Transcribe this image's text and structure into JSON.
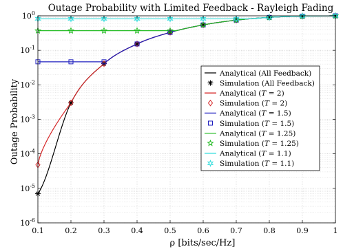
{
  "chart_data": {
    "type": "line",
    "title": "Outage Probability with Limited Feedback - Rayleigh Fading",
    "xlabel": "ρ [bits/sec/Hz]",
    "ylabel": "Outage Probability",
    "xlim": [
      0.1,
      1.0
    ],
    "ylim": [
      1e-06,
      1
    ],
    "yscale": "log",
    "grid": true,
    "minor_grid": true,
    "legend_position": "right",
    "x_ticks": [
      "0.1",
      "0.2",
      "0.3",
      "0.4",
      "0.5",
      "0.6",
      "0.7",
      "0.8",
      "0.9",
      "1"
    ],
    "y_ticks": [
      {
        "base": "10",
        "exp": "-6",
        "value": 1e-06
      },
      {
        "base": "10",
        "exp": "-5",
        "value": 1e-05
      },
      {
        "base": "10",
        "exp": "-4",
        "value": 0.0001
      },
      {
        "base": "10",
        "exp": "-3",
        "value": 0.001
      },
      {
        "base": "10",
        "exp": "-2",
        "value": 0.01
      },
      {
        "base": "10",
        "exp": "-1",
        "value": 0.1
      },
      {
        "base": "10",
        "exp": "0",
        "value": 1
      }
    ],
    "series": [
      {
        "name": "Analytical (All Feedback)",
        "kind": "analytical",
        "color": "#000000",
        "floor": 0,
        "x": [
          0.1,
          0.2,
          0.3,
          0.4,
          0.5,
          0.6,
          0.7,
          0.8,
          0.9,
          1.0
        ]
      },
      {
        "name": "Simulation (All Feedback)",
        "kind": "simulation",
        "color": "#000000",
        "marker": "asterisk",
        "x": [
          0.1,
          0.2,
          0.3,
          0.4,
          0.5,
          0.6,
          0.7,
          0.8,
          0.9,
          1.0
        ],
        "y": [
          7e-06,
          0.003,
          0.041,
          0.153,
          0.331,
          0.545,
          0.75,
          0.9,
          0.98,
          1.0
        ]
      },
      {
        "name": "Analytical (T = 2)",
        "kind": "analytical",
        "color": "#d62728",
        "floor": 0,
        "x": [
          0.1,
          0.2,
          0.3,
          0.4,
          0.5,
          0.6,
          0.7,
          0.8,
          0.9,
          1.0
        ]
      },
      {
        "name": "Simulation (T = 2)",
        "kind": "simulation",
        "color": "#d62728",
        "marker": "diamond",
        "x": [
          0.1,
          0.2,
          0.3,
          0.4,
          0.5,
          0.6,
          0.7,
          0.8,
          0.9,
          1.0
        ],
        "y": [
          4.8e-05,
          0.003,
          0.041,
          0.153,
          0.331,
          0.545,
          0.75,
          0.9,
          0.98,
          1.0
        ]
      },
      {
        "name": "Analytical (T = 1.5)",
        "kind": "analytical",
        "color": "#1f1fbf",
        "floor": 0.0465,
        "x": [
          0.1,
          0.2,
          0.3,
          0.4,
          0.5,
          0.6,
          0.7,
          0.8,
          0.9,
          1.0
        ]
      },
      {
        "name": "Simulation (T = 1.5)",
        "kind": "simulation",
        "color": "#1f1fbf",
        "marker": "square",
        "x": [
          0.1,
          0.2,
          0.3,
          0.4,
          0.5,
          0.6,
          0.7,
          0.8,
          0.9,
          1.0
        ],
        "y": [
          0.0465,
          0.0465,
          0.0465,
          0.153,
          0.331,
          0.545,
          0.75,
          0.9,
          0.98,
          1.0
        ]
      },
      {
        "name": "Analytical (T = 1.25)",
        "kind": "analytical",
        "color": "#22bb22",
        "floor": 0.37,
        "x": [
          0.1,
          0.2,
          0.3,
          0.4,
          0.5,
          0.6,
          0.7,
          0.8,
          0.9,
          1.0
        ]
      },
      {
        "name": "Simulation (T = 1.25)",
        "kind": "simulation",
        "color": "#22bb22",
        "marker": "star",
        "x": [
          0.1,
          0.2,
          0.3,
          0.4,
          0.5,
          0.6,
          0.7,
          0.8,
          0.9,
          1.0
        ],
        "y": [
          0.37,
          0.37,
          0.37,
          0.37,
          0.37,
          0.545,
          0.75,
          0.9,
          0.98,
          1.0
        ]
      },
      {
        "name": "Analytical (T = 1.1)",
        "kind": "analytical",
        "color": "#33dddd",
        "floor": 0.82,
        "x": [
          0.1,
          0.2,
          0.3,
          0.4,
          0.5,
          0.6,
          0.7,
          0.8,
          0.9,
          1.0
        ]
      },
      {
        "name": "Simulation (T = 1.1)",
        "kind": "simulation",
        "color": "#33dddd",
        "marker": "hexagram",
        "x": [
          0.1,
          0.2,
          0.3,
          0.4,
          0.5,
          0.6,
          0.7,
          0.8,
          0.9,
          1.0
        ],
        "y": [
          0.82,
          0.82,
          0.82,
          0.82,
          0.82,
          0.82,
          0.82,
          0.9,
          0.98,
          1.0
        ]
      }
    ],
    "legend": [
      {
        "pre": "Analytical (All Feedback)",
        "italic": "",
        "post": ""
      },
      {
        "pre": "Simulation (All Feedback)",
        "italic": "",
        "post": ""
      },
      {
        "pre": "Analytical (",
        "italic": "T",
        "post": " = 2)"
      },
      {
        "pre": "Simulation (",
        "italic": "T",
        "post": " = 2)"
      },
      {
        "pre": "Analytical (",
        "italic": "T",
        "post": " = 1.5)"
      },
      {
        "pre": "Simulation (",
        "italic": "T",
        "post": " = 1.5)"
      },
      {
        "pre": "Analytical (",
        "italic": "T",
        "post": " = 1.25)"
      },
      {
        "pre": "Simulation (",
        "italic": "T",
        "post": " = 1.25)"
      },
      {
        "pre": "Analytical (",
        "italic": "T",
        "post": " = 1.1)"
      },
      {
        "pre": "Simulation (",
        "italic": "T",
        "post": " = 1.1)"
      }
    ]
  }
}
